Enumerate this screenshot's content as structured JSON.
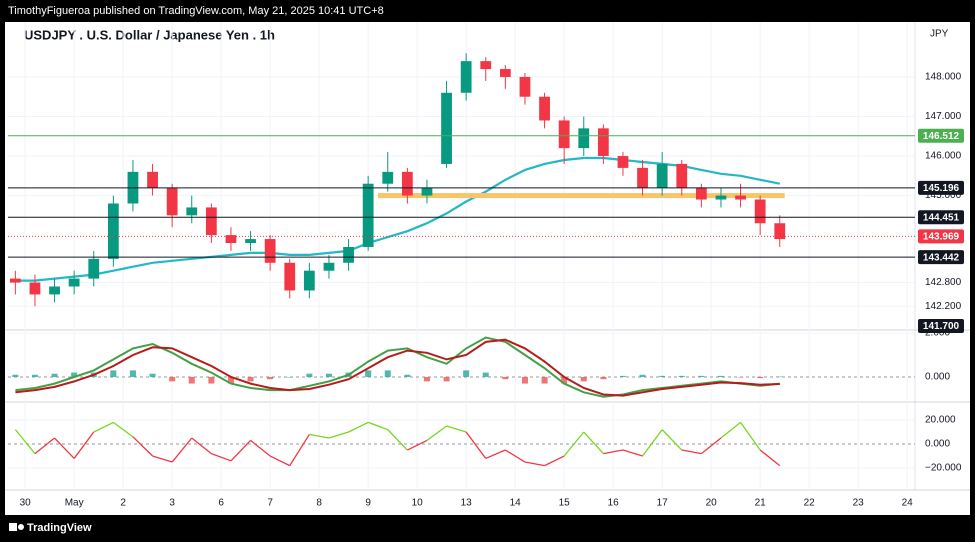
{
  "header": {
    "publisher": "TimothyFigueroa published on TradingView.com, May 21, 2025 10:41 UTC+8"
  },
  "footer": {
    "brand": "TradingView"
  },
  "chart_data": [
    {
      "type": "candlestick",
      "title": "USDJPY . U.S. Dollar / Japanese Yen . 1h",
      "currency": "JPY",
      "x": [
        -0.2,
        0.2,
        0.6,
        1.0,
        1.4,
        1.8,
        2.2,
        2.6,
        3.0,
        3.4,
        3.8,
        4.2,
        4.6,
        5.0,
        5.4,
        5.8,
        6.2,
        6.6,
        7.0,
        7.4,
        7.8,
        8.2,
        8.6,
        9.0,
        9.4,
        9.8,
        10.2,
        10.6,
        11.0,
        11.4,
        11.8,
        12.2,
        12.6,
        13.0,
        13.4,
        13.8,
        14.2,
        14.6,
        15.0,
        15.4
      ],
      "open": [
        142.9,
        142.8,
        142.5,
        142.7,
        142.9,
        143.4,
        144.8,
        145.6,
        145.2,
        144.5,
        144.7,
        144.0,
        143.8,
        143.9,
        143.3,
        142.6,
        143.1,
        143.3,
        143.7,
        145.3,
        145.6,
        145.0,
        145.8,
        147.6,
        148.4,
        148.2,
        148.0,
        147.5,
        146.9,
        146.2,
        146.7,
        146.0,
        145.7,
        145.2,
        145.8,
        145.2,
        144.9,
        145.0,
        144.9,
        144.3
      ],
      "high": [
        143.1,
        143.0,
        142.9,
        143.1,
        143.6,
        145.0,
        145.9,
        145.8,
        145.3,
        145.0,
        144.8,
        144.2,
        144.1,
        144.0,
        143.4,
        143.3,
        143.5,
        143.9,
        145.5,
        146.1,
        145.7,
        145.4,
        147.9,
        148.6,
        148.5,
        148.3,
        148.1,
        147.6,
        147.0,
        147.0,
        146.8,
        146.1,
        145.9,
        146.1,
        145.9,
        145.3,
        145.2,
        145.3,
        145.0,
        144.5
      ],
      "low": [
        142.5,
        142.2,
        142.3,
        142.5,
        142.7,
        143.2,
        144.6,
        145.0,
        144.2,
        144.3,
        143.8,
        143.6,
        143.6,
        143.1,
        142.4,
        142.4,
        142.9,
        143.1,
        143.6,
        145.1,
        144.8,
        144.8,
        145.7,
        147.4,
        147.9,
        147.7,
        147.3,
        146.7,
        145.8,
        146.0,
        145.8,
        145.5,
        145.0,
        145.0,
        145.0,
        144.7,
        144.7,
        144.7,
        144.0,
        143.7
      ],
      "close": [
        142.8,
        142.5,
        142.7,
        142.9,
        143.4,
        144.8,
        145.6,
        145.2,
        144.5,
        144.7,
        144.0,
        143.8,
        143.9,
        143.3,
        142.6,
        143.1,
        143.3,
        143.7,
        145.3,
        145.6,
        145.0,
        145.2,
        147.6,
        148.4,
        148.2,
        148.0,
        147.5,
        146.9,
        146.2,
        146.7,
        146.0,
        145.7,
        145.2,
        145.8,
        145.2,
        144.9,
        145.0,
        144.9,
        144.3,
        143.9
      ],
      "up_color": "#089981",
      "down_color": "#f23645",
      "moving_average": {
        "color": "#22b8c8",
        "values": [
          142.85,
          142.85,
          142.9,
          142.95,
          143.0,
          143.1,
          143.2,
          143.3,
          143.35,
          143.4,
          143.45,
          143.5,
          143.55,
          143.55,
          143.5,
          143.5,
          143.55,
          143.6,
          143.8,
          143.95,
          144.1,
          144.3,
          144.55,
          144.85,
          145.1,
          145.4,
          145.65,
          145.8,
          145.9,
          145.95,
          145.95,
          145.9,
          145.85,
          145.8,
          145.75,
          145.65,
          145.55,
          145.5,
          145.4,
          145.3
        ]
      },
      "levels": [
        {
          "value": 146.512,
          "color": "#4caf50",
          "style": "solid"
        },
        {
          "value": 145.196,
          "color": "#131722",
          "style": "solid"
        },
        {
          "value": 144.451,
          "color": "#131722",
          "style": "solid"
        },
        {
          "value": 143.969,
          "color": "#f23645",
          "style": "dotted"
        },
        {
          "value": 143.442,
          "color": "#131722",
          "style": "solid"
        },
        {
          "value": 141.7,
          "label": "141.700",
          "color": "#131722",
          "style": "none"
        }
      ],
      "zone": {
        "value": 145.0,
        "x": [
          7.2,
          15.5
        ],
        "color": "#f9c56b"
      },
      "ylim": [
        141.6,
        149.39
      ],
      "yticks": [
        {
          "value": 148,
          "label": "148.000"
        },
        {
          "value": 147,
          "label": "147.000"
        },
        {
          "value": 146,
          "label": "146.000"
        },
        {
          "value": 145,
          "label": "145.000"
        },
        {
          "value": 142.8,
          "label": "142.800"
        },
        {
          "value": 142.2,
          "label": "142.200"
        }
      ],
      "xlim": [
        -0.35,
        18.16
      ],
      "xticks": [
        {
          "value": 0,
          "label": "30"
        },
        {
          "value": 1,
          "label": "May"
        },
        {
          "value": 2,
          "label": "2"
        },
        {
          "value": 3,
          "label": "3"
        },
        {
          "value": 4,
          "label": "6"
        },
        {
          "value": 5,
          "label": "7"
        },
        {
          "value": 6,
          "label": "8"
        },
        {
          "value": 7,
          "label": "9"
        },
        {
          "value": 8,
          "label": "10"
        },
        {
          "value": 9,
          "label": "13"
        },
        {
          "value": 10,
          "label": "14"
        },
        {
          "value": 11,
          "label": "15"
        },
        {
          "value": 12,
          "label": "16"
        },
        {
          "value": 13,
          "label": "17"
        },
        {
          "value": 14,
          "label": "20"
        },
        {
          "value": 15,
          "label": "21"
        },
        {
          "value": 16,
          "label": "22"
        },
        {
          "value": 17,
          "label": "23"
        },
        {
          "value": 18,
          "label": "24"
        }
      ],
      "grid": true
    },
    {
      "type": "line",
      "series": [
        {
          "color": "#43a047",
          "values": [
            -0.6,
            -0.5,
            -0.3,
            0.0,
            0.3,
            0.8,
            1.3,
            1.5,
            1.1,
            0.6,
            0.2,
            -0.3,
            -0.5,
            -0.6,
            -0.6,
            -0.4,
            -0.2,
            0.1,
            0.7,
            1.2,
            1.3,
            0.9,
            0.6,
            1.3,
            1.8,
            1.6,
            1.0,
            0.4,
            -0.3,
            -0.7,
            -0.9,
            -0.8,
            -0.6,
            -0.5,
            -0.4,
            -0.3,
            -0.2,
            -0.3,
            -0.4,
            -0.3
          ]
        },
        {
          "color": "#b71c1c",
          "values": [
            -0.7,
            -0.6,
            -0.45,
            -0.2,
            0.1,
            0.5,
            1.0,
            1.35,
            1.3,
            0.9,
            0.5,
            0.0,
            -0.3,
            -0.5,
            -0.6,
            -0.55,
            -0.35,
            -0.1,
            0.4,
            0.9,
            1.2,
            1.1,
            0.8,
            1.0,
            1.6,
            1.7,
            1.3,
            0.7,
            0.0,
            -0.5,
            -0.8,
            -0.85,
            -0.7,
            -0.55,
            -0.45,
            -0.35,
            -0.25,
            -0.28,
            -0.35,
            -0.32
          ]
        }
      ],
      "histogram": {
        "up_color": "#26a69a",
        "down_color": "#ef5350",
        "values": [
          0.1,
          0.1,
          0.15,
          0.2,
          0.2,
          0.3,
          0.3,
          0.15,
          -0.2,
          -0.3,
          -0.3,
          -0.3,
          -0.2,
          -0.1,
          0,
          0.15,
          0.15,
          0.2,
          0.3,
          0.3,
          0.1,
          -0.2,
          -0.2,
          0.3,
          0.2,
          -0.1,
          -0.3,
          -0.3,
          -0.3,
          -0.2,
          -0.1,
          0.05,
          0.1,
          0.05,
          0.05,
          0.05,
          0.05,
          -0.02,
          -0.05,
          0.02
        ]
      },
      "ylim": [
        -1.14,
        2.14
      ],
      "yticks": [
        {
          "value": 2,
          "label": "2.000"
        },
        {
          "value": 0,
          "label": "0.000"
        }
      ]
    },
    {
      "type": "oscillator",
      "values": [
        12,
        -8,
        5,
        -12,
        10,
        18,
        6,
        -10,
        -15,
        5,
        -8,
        -14,
        3,
        -10,
        -18,
        8,
        5,
        10,
        18,
        12,
        -5,
        3,
        15,
        10,
        -12,
        -5,
        -15,
        -18,
        -10,
        10,
        -8,
        -5,
        -10,
        12,
        -5,
        -8,
        5,
        18,
        -5,
        -18
      ],
      "up_color": "#76d81f",
      "down_color": "#f23645",
      "ylim": [
        -38.3,
        35
      ],
      "yticks": [
        {
          "value": 20,
          "label": "20.000"
        },
        {
          "value": 0,
          "label": "0.000"
        },
        {
          "value": -20,
          "label": "−20.000"
        }
      ]
    }
  ]
}
